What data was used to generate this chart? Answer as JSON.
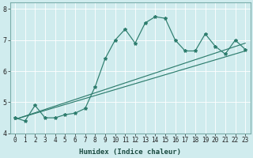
{
  "xlabel": "Humidex (Indice chaleur)",
  "x": [
    0,
    1,
    2,
    3,
    4,
    5,
    6,
    7,
    8,
    9,
    10,
    11,
    12,
    13,
    14,
    15,
    16,
    17,
    18,
    19,
    20,
    21,
    22,
    23
  ],
  "line_data": [
    4.5,
    4.4,
    4.9,
    4.5,
    4.5,
    4.6,
    4.65,
    4.8,
    5.5,
    6.4,
    7.0,
    7.35,
    6.9,
    7.55,
    7.75,
    7.7,
    7.0,
    6.65,
    6.65,
    7.2,
    6.8,
    6.55,
    7.0,
    6.7
  ],
  "trend1_x": [
    0,
    23
  ],
  "trend1_y": [
    4.45,
    6.9
  ],
  "trend2_x": [
    0,
    23
  ],
  "trend2_y": [
    4.45,
    6.65
  ],
  "color": "#2e7d6e",
  "bg_color": "#d0ecee",
  "grid_color": "#ffffff",
  "ylim": [
    4.0,
    8.2
  ],
  "xlim": [
    -0.5,
    23.5
  ],
  "yticks": [
    4,
    5,
    6,
    7,
    8
  ],
  "xticks": [
    0,
    1,
    2,
    3,
    4,
    5,
    6,
    7,
    8,
    9,
    10,
    11,
    12,
    13,
    14,
    15,
    16,
    17,
    18,
    19,
    20,
    21,
    22,
    23
  ],
  "tick_fontsize": 5.5,
  "xlabel_fontsize": 6.5
}
